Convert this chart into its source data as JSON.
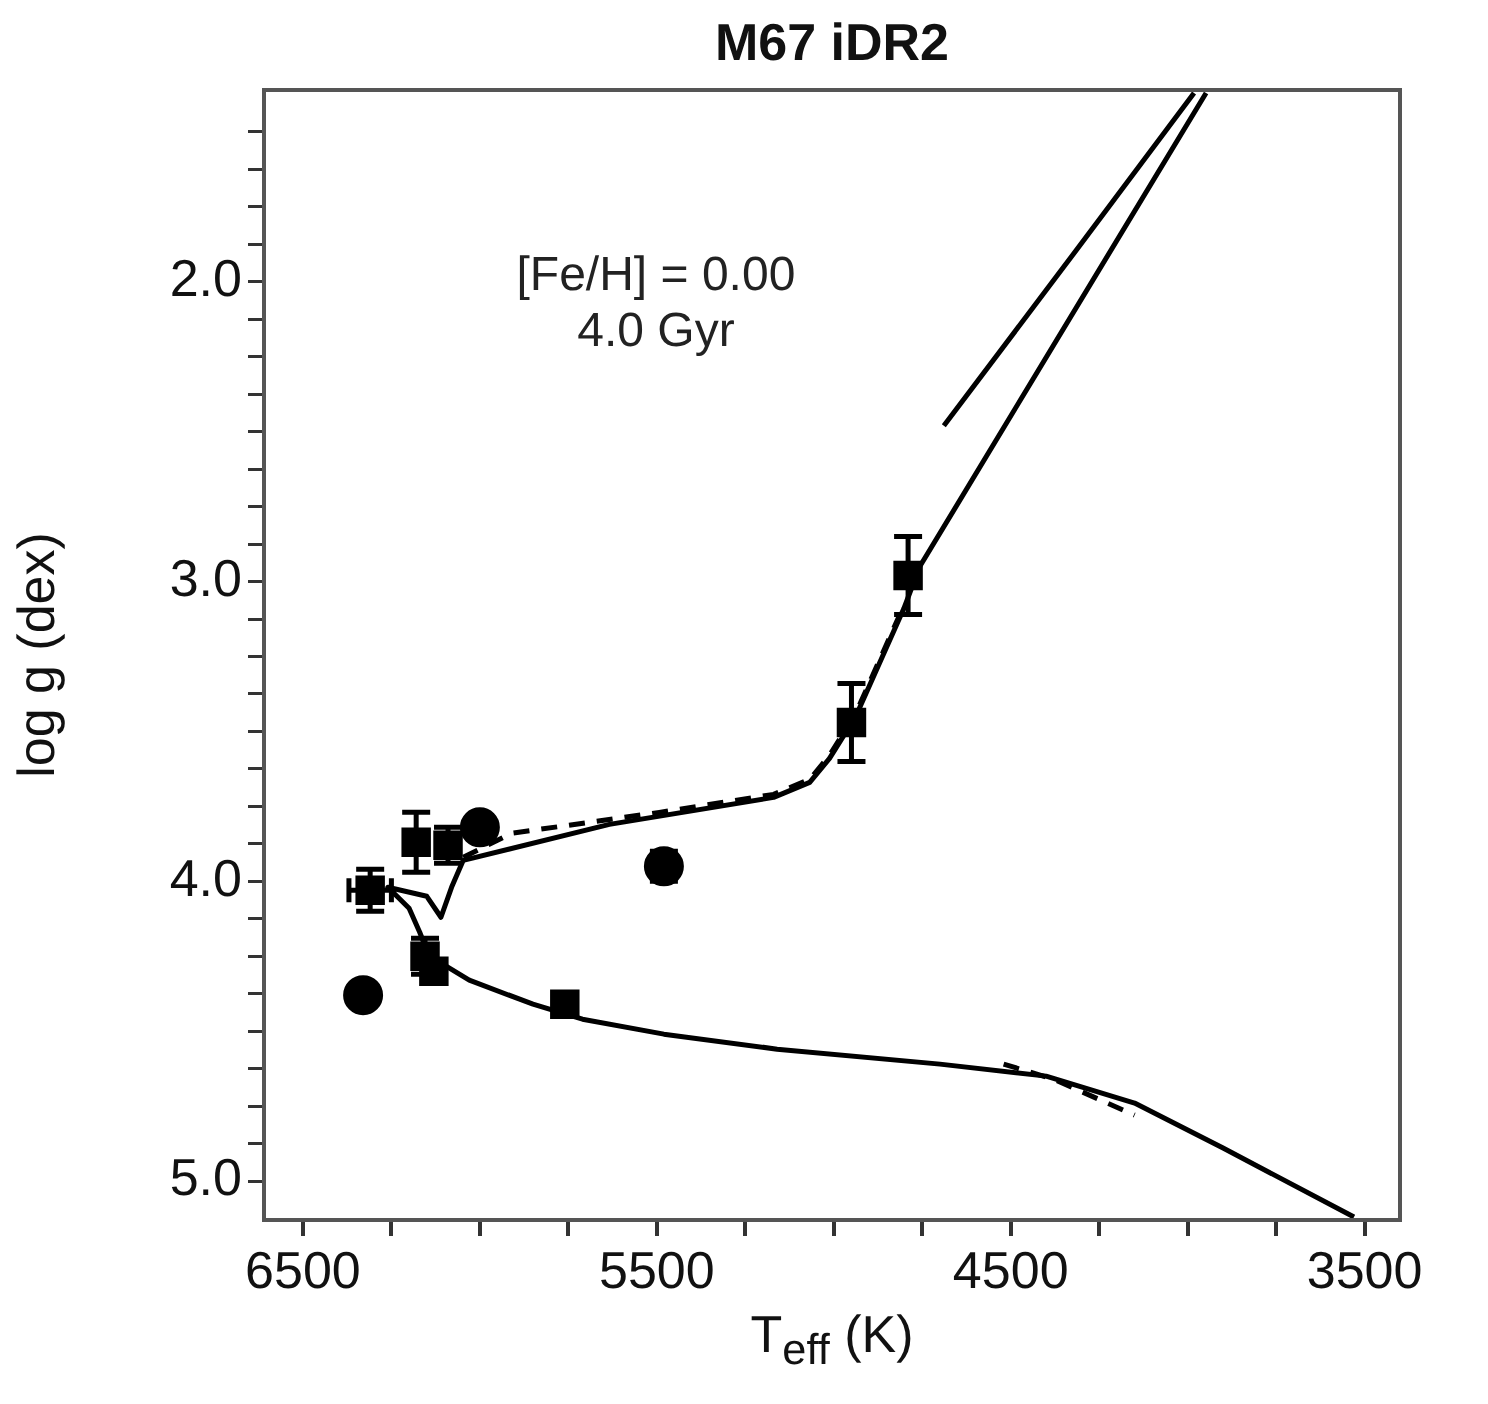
{
  "chart_data": {
    "type": "scatter",
    "title": "M67 iDR2",
    "xlabel": "T$_{eff}$ (K)",
    "ylabel": "log g (dex)",
    "annotations": [
      "[Fe/H] = 0.00",
      "4.0 Gyr"
    ],
    "xlim": [
      6610,
      3400
    ],
    "ylim": [
      5.13,
      1.36
    ],
    "xticks": [
      6500,
      {
        "value": 6250,
        "label": null
      },
      {
        "value": 6000,
        "label": null
      },
      {
        "value": 5750,
        "label": null
      },
      5500,
      {
        "value": 5250,
        "label": null
      },
      {
        "value": 5000,
        "label": null
      },
      {
        "value": 4750,
        "label": null
      },
      4500,
      {
        "value": 4250,
        "label": null
      },
      {
        "value": 4000,
        "label": null
      },
      {
        "value": 3750,
        "label": null
      },
      3500
    ],
    "yticks": [
      {
        "value": 1.5,
        "label": null
      },
      {
        "value": 1.625,
        "label": null
      },
      {
        "value": 1.75,
        "label": null
      },
      {
        "value": 1.875,
        "label": null
      },
      {
        "value": 2,
        "label": "2.0"
      },
      {
        "value": 2.125,
        "label": null
      },
      {
        "value": 2.25,
        "label": null
      },
      {
        "value": 2.375,
        "label": null
      },
      {
        "value": 2.5,
        "label": null
      },
      {
        "value": 2.625,
        "label": null
      },
      {
        "value": 2.75,
        "label": null
      },
      {
        "value": 2.875,
        "label": null
      },
      {
        "value": 3,
        "label": "3.0"
      },
      {
        "value": 3.125,
        "label": null
      },
      {
        "value": 3.25,
        "label": null
      },
      {
        "value": 3.375,
        "label": null
      },
      {
        "value": 3.5,
        "label": null
      },
      {
        "value": 3.625,
        "label": null
      },
      {
        "value": 3.75,
        "label": null
      },
      {
        "value": 3.875,
        "label": null
      },
      {
        "value": 4,
        "label": "4.0"
      },
      {
        "value": 4.125,
        "label": null
      },
      {
        "value": 4.25,
        "label": null
      },
      {
        "value": 4.375,
        "label": null
      },
      {
        "value": 4.5,
        "label": null
      },
      {
        "value": 4.625,
        "label": null
      },
      {
        "value": 4.75,
        "label": null
      },
      {
        "value": 4.875,
        "label": null
      },
      {
        "value": 5,
        "label": "5.0"
      }
    ],
    "grid": false,
    "legend": false,
    "series": [
      {
        "type": "line",
        "color": "#000000",
        "line_style": "solid",
        "marker": "none",
        "x": [
          3530,
          3900,
          4150,
          4400,
          4700,
          5160,
          5480,
          5710,
          5850,
          6030,
          6100,
          6150,
          6170,
          6200,
          6260,
          6150,
          6110,
          6080,
          6047,
          5634,
          5170,
          5068,
          5012,
          4938,
          4802,
          4757,
          4450,
          3948
        ],
        "values": [
          5.12,
          4.89,
          4.74,
          4.65,
          4.61,
          4.56,
          4.51,
          4.46,
          4.41,
          4.33,
          4.28,
          4.23,
          4.17,
          4.09,
          4.02,
          4.05,
          4.12,
          4.02,
          3.93,
          3.81,
          3.72,
          3.67,
          3.59,
          3.45,
          3.09,
          2.95,
          2.35,
          1.37
        ]
      },
      {
        "type": "line",
        "color": "#000000",
        "line_style": "dashed",
        "marker": "none",
        "x": [
          6047,
          5911,
          5493,
          5170,
          5068,
          5012,
          4938,
          4802,
          4700,
          4520,
          4380,
          4150
        ],
        "values": [
          3.92,
          3.84,
          3.77,
          3.71,
          3.66,
          3.58,
          3.44,
          3.08,
          null,
          4.61,
          4.66,
          4.78
        ]
      },
      {
        "type": "line",
        "color": "#000000",
        "line_style": "solid",
        "marker": "none",
        "x": [
          4689,
          4350,
          3982
        ],
        "values": [
          2.48,
          1.95,
          1.37
        ]
      },
      {
        "color": "#000000",
        "marker": "square",
        "x": [
          6180,
          6090,
          6155,
          6130,
          5760,
          4950,
          4790
        ],
        "values": [
          3.87,
          3.88,
          4.25,
          4.3,
          4.41,
          3.47,
          2.98
        ],
        "errors": [
          0.1,
          0.06,
          0.06,
          null,
          null,
          0.13,
          0.13
        ]
      },
      {
        "color": "#000000",
        "marker": "circle",
        "x": [
          6000,
          6330,
          5480
        ],
        "values": [
          3.82,
          4.38,
          3.95
        ],
        "errors": [
          null,
          null,
          0.05
        ]
      },
      {
        "color": "#000000",
        "marker": "square",
        "x": [
          6310
        ],
        "values": [
          4.03
        ],
        "errors": [
          0.07
        ],
        "xerrors": [
          60
        ]
      }
    ]
  }
}
